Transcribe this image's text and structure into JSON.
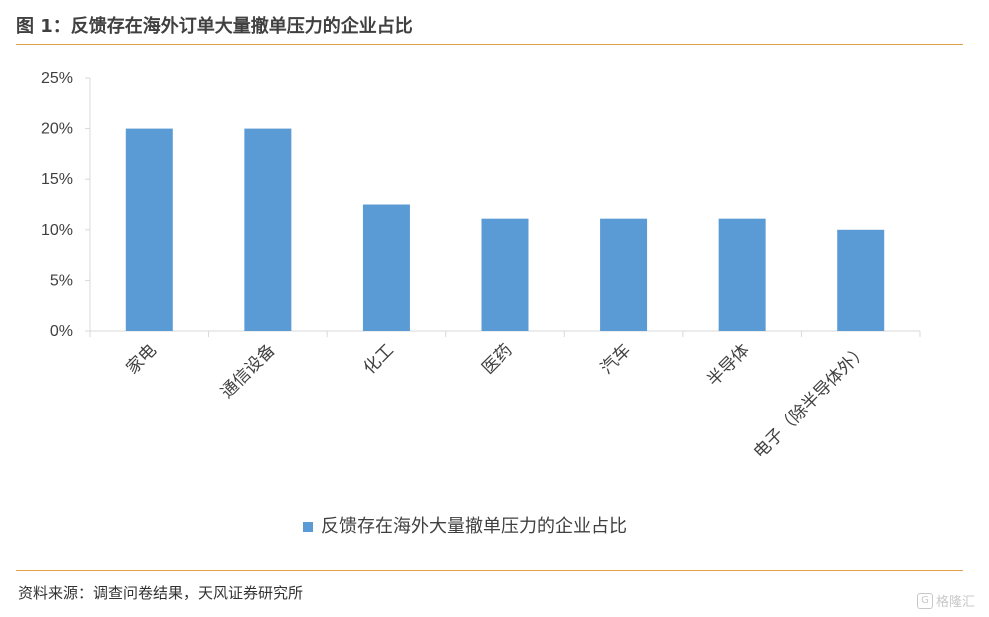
{
  "header": {
    "title": "图 1：反馈存在海外订单大量撤单压力的企业占比"
  },
  "chart_data": {
    "type": "bar",
    "categories": [
      "家电",
      "通信设备",
      "化工",
      "医药",
      "汽车",
      "半导体",
      "电子（除半导体外）"
    ],
    "series": [
      {
        "name": "反馈存在海外大量撤单压力的企业占比",
        "values": [
          0.2,
          0.2,
          0.125,
          0.111,
          0.111,
          0.111,
          0.1
        ]
      }
    ],
    "ylim": [
      0,
      0.25
    ],
    "yticks": [
      "0%",
      "5%",
      "10%",
      "15%",
      "20%",
      "25%"
    ],
    "grid": false,
    "legend_position": "bottom",
    "colors": {
      "bar": "#5B9BD5",
      "axis": "#D9D9D9",
      "rule": "#E0A245"
    }
  },
  "footer": {
    "source": "资料来源：调查问卷结果，天风证券研究所",
    "watermark": "格隆汇"
  }
}
